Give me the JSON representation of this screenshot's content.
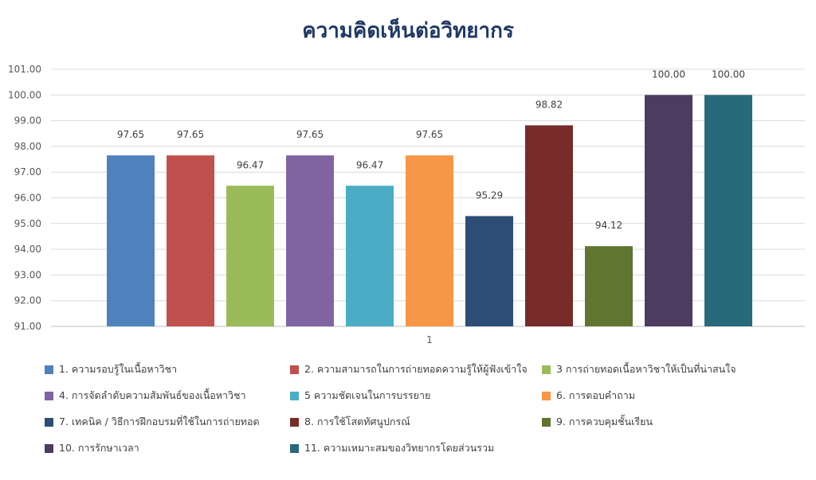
{
  "chart_data": {
    "type": "bar",
    "title": "ความคิดเห็นต่อวิทยากร",
    "categories": [
      "1"
    ],
    "ylim": [
      91,
      101
    ],
    "y_ticks": [
      "91.00",
      "92.00",
      "93.00",
      "94.00",
      "95.00",
      "96.00",
      "97.00",
      "98.00",
      "99.00",
      "100.00",
      "101.00"
    ],
    "grid": true,
    "legend_position": "bottom",
    "series": [
      {
        "name": "1. ความรอบรู้ในเนื้อหาวิชา",
        "value": 97.65,
        "label": "97.65",
        "color": "#4f81bd"
      },
      {
        "name": "2. ความสามารถในการถ่ายทอดความรู้ให้ผู้ฟังเข้าใจ",
        "value": 97.65,
        "label": "97.65",
        "color": "#c0504d"
      },
      {
        "name": "3  การถ่ายทอดเนื้อหาวิชาให้เป็นที่น่าสนใจ",
        "value": 96.47,
        "label": "96.47",
        "color": "#9bbb59"
      },
      {
        "name": "4. การจัดลำดับความสัมพันธ์ของเนื้อหาวิชา",
        "value": 97.65,
        "label": "97.65",
        "color": "#8064a2"
      },
      {
        "name": "5  ความชัดเจนในการบรรยาย",
        "value": 96.47,
        "label": "96.47",
        "color": "#4bacc6"
      },
      {
        "name": "6. การตอบคำถาม",
        "value": 97.65,
        "label": "97.65",
        "color": "#f79646"
      },
      {
        "name": "7. เทคนิค / วิธีการฝึกอบรมที่ใช้ในการถ่ายทอด",
        "value": 95.29,
        "label": "95.29",
        "color": "#2c4d75"
      },
      {
        "name": "8. การใช้โสตทัศนูปกรณ์",
        "value": 98.82,
        "label": "98.82",
        "color": "#772c2a"
      },
      {
        "name": "9. การควบคุมชั้นเรียน",
        "value": 94.12,
        "label": "94.12",
        "color": "#5f7530"
      },
      {
        "name": "10. การรักษาเวลา",
        "value": 100.0,
        "label": "100.00",
        "color": "#4d3b62"
      },
      {
        "name": "11. ความเหมาะสมของวิทยากรโดยส่วนรวม",
        "value": 100.0,
        "label": "100.00",
        "color": "#276a7c"
      }
    ]
  }
}
